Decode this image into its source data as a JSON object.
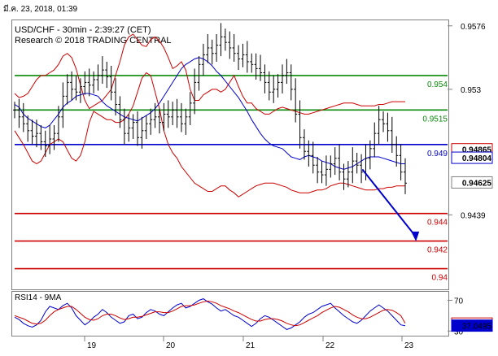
{
  "timestamp": "มี.ค. 23, 2018, 01:39",
  "header": {
    "symbol_line": "USD/CHF - 30min - 2:39:27 (CET)",
    "research_line": "Research © 2018 TRADING CENTRAL"
  },
  "rsi_label": "RSI14 - 9MA",
  "colors": {
    "support_green": "#0a8a0a",
    "pivot_blue": "#0000cc",
    "resistance_red": "#cc0000",
    "bollinger": "#cc0000",
    "ma": "#0000cc",
    "price": "#000000"
  },
  "chart_data": [
    {
      "type": "candlestick",
      "title": "USD/CHF - 30min - 2:39:27 (CET)",
      "x_ticks": [
        "19",
        "20",
        "21",
        "22",
        "23"
      ],
      "y_ticks": [
        0.9576,
        0.953,
        0.9439
      ],
      "ylim": [
        0.9385,
        0.958
      ],
      "grid": false,
      "levels": [
        {
          "label": "0.954",
          "value": 0.954,
          "color": "green"
        },
        {
          "label": "0.9515",
          "value": 0.9515,
          "color": "green"
        },
        {
          "label": "0.949",
          "value": 0.949,
          "color": "blue"
        },
        {
          "label": "0.944",
          "value": 0.944,
          "color": "red"
        },
        {
          "label": "0.942",
          "value": 0.942,
          "color": "red"
        },
        {
          "label": "0.94",
          "value": 0.94,
          "color": "red"
        }
      ],
      "badges": [
        {
          "text": "0.94865",
          "value": 0.94865,
          "style": "red-outline"
        },
        {
          "text": "0.94804",
          "value": 0.94804,
          "style": "blue-outline"
        },
        {
          "text": "0.94625",
          "value": 0.94625,
          "style": "plain"
        }
      ],
      "projection_arrow": {
        "from": [
          -12,
          0.9472
        ],
        "to": [
          -2,
          0.9421
        ]
      },
      "series_close": [
        0.9515,
        0.951,
        0.9505,
        0.95,
        0.9496,
        0.9498,
        0.9492,
        0.9489,
        0.9494,
        0.9498,
        0.951,
        0.9525,
        0.9535,
        0.953,
        0.9528,
        0.9532,
        0.9535,
        0.9533,
        0.9537,
        0.954,
        0.9544,
        0.9539,
        0.9528,
        0.9519,
        0.9508,
        0.9498,
        0.9502,
        0.9506,
        0.9495,
        0.95,
        0.9505,
        0.9508,
        0.951,
        0.9506,
        0.9512,
        0.951,
        0.9515,
        0.951,
        0.9505,
        0.951,
        0.952,
        0.9535,
        0.9548,
        0.9555,
        0.956,
        0.9556,
        0.9562,
        0.9568,
        0.9564,
        0.956,
        0.9556,
        0.9552,
        0.9555,
        0.955,
        0.9548,
        0.9545,
        0.9542,
        0.9535,
        0.9528,
        0.953,
        0.9535,
        0.954,
        0.9542,
        0.953,
        0.9512,
        0.9495,
        0.9485,
        0.9482,
        0.9475,
        0.947,
        0.9468,
        0.9472,
        0.9476,
        0.948,
        0.947,
        0.9465,
        0.947,
        0.9478,
        0.9475,
        0.947,
        0.948,
        0.9487,
        0.9498,
        0.9508,
        0.9505,
        0.95,
        0.949,
        0.9482,
        0.947,
        0.9462
      ],
      "ma_line": [
        0.9519,
        0.9517,
        0.9512,
        0.9509,
        0.9507,
        0.9505,
        0.9503,
        0.9502,
        0.9504,
        0.9508,
        0.9512,
        0.9517,
        0.952,
        0.9522,
        0.9525,
        0.9526,
        0.9527,
        0.9527,
        0.9526,
        0.9525,
        0.9521,
        0.9518,
        0.9516,
        0.9514,
        0.9512,
        0.951,
        0.9509,
        0.9508,
        0.9507,
        0.9509,
        0.9511,
        0.9513,
        0.9516,
        0.952,
        0.9525,
        0.953,
        0.9535,
        0.954,
        0.9545,
        0.9548,
        0.955,
        0.9552,
        0.9553,
        0.9552,
        0.955,
        0.9547,
        0.9543,
        0.954,
        0.9536,
        0.9532,
        0.9528,
        0.9524,
        0.9519,
        0.9514,
        0.9508,
        0.9503,
        0.9498,
        0.9494,
        0.9491,
        0.9489,
        0.9488,
        0.9487,
        0.9484,
        0.9481,
        0.948,
        0.9479,
        0.9481,
        0.9482,
        0.9481,
        0.948,
        0.9478,
        0.9477,
        0.9476,
        0.9474,
        0.9473,
        0.9472,
        0.9473,
        0.9474,
        0.9476,
        0.9478,
        0.948,
        0.9481,
        0.9481,
        0.9481,
        0.948,
        0.9479,
        0.9478,
        0.9477,
        0.9476,
        0.9476
      ],
      "bollinger_upper": [
        0.9527,
        0.9524,
        0.9525,
        0.9527,
        0.9532,
        0.9537,
        0.954,
        0.954,
        0.9542,
        0.9544,
        0.9548,
        0.9554,
        0.9556,
        0.9553,
        0.9545,
        0.9533,
        0.9522,
        0.9516,
        0.9518,
        0.952,
        0.9522,
        0.9526,
        0.953,
        0.954,
        0.955,
        0.9562,
        0.9568,
        0.957,
        0.9566,
        0.9562,
        0.9561,
        0.9566,
        0.9568,
        0.9565,
        0.956,
        0.9553,
        0.9545,
        0.9547,
        0.955,
        0.9544,
        0.953,
        0.9522,
        0.9522,
        0.9526,
        0.9528,
        0.953,
        0.953,
        0.9528,
        0.953,
        0.9535,
        0.954,
        0.9532,
        0.9525,
        0.952,
        0.952,
        0.9516,
        0.9514,
        0.9512,
        0.9512,
        0.9514,
        0.9516,
        0.9517,
        0.9516,
        0.9515,
        0.9514,
        0.9513,
        0.9512,
        0.9512,
        0.9513,
        0.9514,
        0.9515,
        0.9516,
        0.9517,
        0.9518,
        0.9519,
        0.952,
        0.952,
        0.952,
        0.9519,
        0.9518,
        0.9518,
        0.9518,
        0.9518,
        0.9519,
        0.9519,
        0.952,
        0.9521,
        0.9521,
        0.9521,
        0.9521
      ],
      "bollinger_lower": [
        0.95,
        0.9495,
        0.949,
        0.9484,
        0.9478,
        0.9476,
        0.9478,
        0.9484,
        0.949,
        0.9492,
        0.9494,
        0.9492,
        0.9486,
        0.948,
        0.9478,
        0.9482,
        0.9492,
        0.9506,
        0.9514,
        0.9512,
        0.951,
        0.9508,
        0.9508,
        0.9506,
        0.9506,
        0.9508,
        0.9512,
        0.9518,
        0.9528,
        0.9538,
        0.9542,
        0.954,
        0.9528,
        0.9516,
        0.95,
        0.949,
        0.9484,
        0.948,
        0.9474,
        0.947,
        0.9466,
        0.9462,
        0.946,
        0.9458,
        0.9456,
        0.9456,
        0.9458,
        0.946,
        0.946,
        0.9457,
        0.9455,
        0.9452,
        0.9454,
        0.9456,
        0.9458,
        0.946,
        0.9461,
        0.9462,
        0.9462,
        0.9462,
        0.9461,
        0.946,
        0.9459,
        0.9457,
        0.9456,
        0.9455,
        0.9455,
        0.9455,
        0.9456,
        0.9457,
        0.9457,
        0.9458,
        0.946,
        0.9461,
        0.9462,
        0.9462,
        0.9461,
        0.946,
        0.9459,
        0.9458,
        0.9457,
        0.9457,
        0.9457,
        0.9458,
        0.9458,
        0.9459,
        0.9459,
        0.946,
        0.946,
        0.946
      ]
    },
    {
      "type": "line",
      "title": "RSI14 - 9MA",
      "x_ticks": [
        "19",
        "20",
        "21",
        "22",
        "23"
      ],
      "y_ticks": [
        70,
        30
      ],
      "ylim": [
        25,
        80
      ],
      "badges": [
        {
          "text": "39.6573",
          "value": 39.6573,
          "style": "red-outline"
        },
        {
          "text": "37.0495",
          "value": 37.0495,
          "style": "blue-fill"
        }
      ],
      "series": [
        {
          "color": "blue",
          "values": [
            48,
            45,
            40,
            37,
            35,
            38,
            44,
            55,
            62,
            60,
            58,
            63,
            66,
            60,
            50,
            44,
            38,
            42,
            48,
            52,
            58,
            54,
            48,
            44,
            40,
            42,
            50,
            52,
            46,
            48,
            54,
            58,
            56,
            52,
            50,
            55,
            60,
            64,
            66,
            60,
            62,
            66,
            70,
            72,
            68,
            65,
            60,
            56,
            58,
            54,
            50,
            48,
            44,
            40,
            36,
            40,
            46,
            50,
            48,
            44,
            40,
            36,
            32,
            34,
            38,
            42,
            48,
            52,
            54,
            58,
            62,
            64,
            66,
            60,
            55,
            50,
            46,
            42,
            40,
            44,
            50,
            56,
            60,
            64,
            60,
            56,
            50,
            44,
            38,
            37
          ]
        },
        {
          "color": "red",
          "values": [
            50,
            48,
            46,
            43,
            40,
            39,
            40,
            44,
            50,
            55,
            58,
            60,
            62,
            62,
            58,
            53,
            48,
            45,
            44,
            46,
            50,
            52,
            52,
            50,
            47,
            45,
            46,
            48,
            48,
            49,
            51,
            53,
            55,
            55,
            54,
            54,
            56,
            59,
            62,
            63,
            63,
            64,
            66,
            68,
            69,
            68,
            66,
            63,
            61,
            59,
            56,
            54,
            51,
            48,
            45,
            43,
            43,
            45,
            46,
            46,
            45,
            43,
            40,
            38,
            37,
            38,
            41,
            44,
            47,
            50,
            54,
            57,
            60,
            62,
            61,
            58,
            55,
            51,
            48,
            46,
            46,
            48,
            51,
            54,
            57,
            58,
            57,
            54,
            50,
            40
          ]
        }
      ]
    }
  ]
}
